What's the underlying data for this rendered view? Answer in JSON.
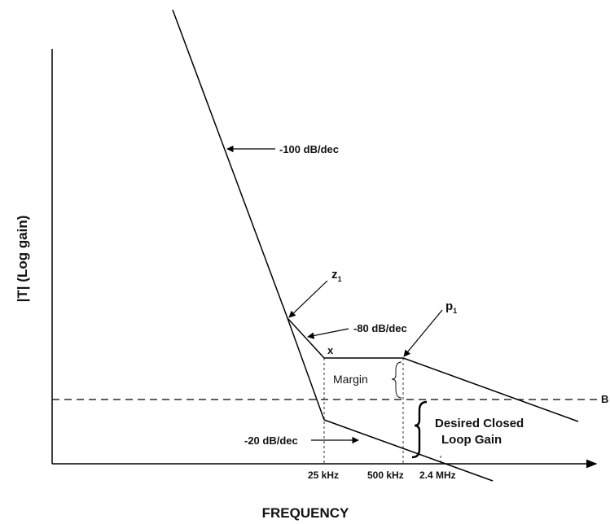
{
  "axes": {
    "y_label": "|T| (Log gain)",
    "x_label": "FREQUENCY"
  },
  "annotations": {
    "slope_minus100": "-100 dB/dec",
    "slope_minus80": "-80 dB/dec",
    "slope_minus20": "-20 dB/dec",
    "zero_label": "z",
    "zero_sub": "1",
    "pole_label": "p",
    "pole_sub": "1",
    "point_x": "x",
    "margin": "Margin",
    "desired_line1": "Desired Closed",
    "desired_line2": "Loop Gain",
    "dashed_level": "B"
  },
  "ticks": {
    "f1": "25 kHz",
    "f2": "500 kHz",
    "f3": "2.4 MHz"
  },
  "colors": {
    "line": "#000000",
    "text": "#111111",
    "background": "#ffffff"
  }
}
